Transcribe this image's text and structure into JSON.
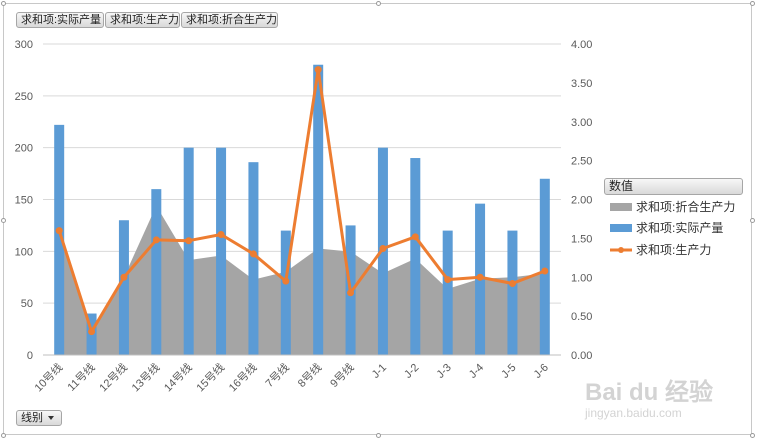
{
  "field_buttons": [
    "求和项:实际产量",
    "求和项:生产力",
    "求和项:折合生产力"
  ],
  "axis_field_button": "线别",
  "legend": {
    "title": "数值",
    "items": [
      {
        "label": "求和项:折合生产力",
        "color": "#a5a5a5",
        "kind": "area"
      },
      {
        "label": "求和项:实际产量",
        "color": "#5b9bd5",
        "kind": "bar"
      },
      {
        "label": "求和项:生产力",
        "color": "#ed7d31",
        "kind": "line"
      }
    ]
  },
  "watermark": {
    "main": "Bai du 经验",
    "sub": "jingyan.baidu.com"
  },
  "chart_data": {
    "type": "bar",
    "categories": [
      "10号线",
      "11号线",
      "12号线",
      "13号线",
      "14号线",
      "15号线",
      "16号线",
      "7号线",
      "8号线",
      "9号线",
      "J-1",
      "J-2",
      "J-3",
      "J-4",
      "J-5",
      "J-6"
    ],
    "series": [
      {
        "name": "求和项:实际产量",
        "type": "bar",
        "axis": "left",
        "color": "#5b9bd5",
        "values": [
          222,
          40,
          130,
          160,
          200,
          200,
          186,
          120,
          280,
          125,
          200,
          190,
          120,
          146,
          120,
          170
        ]
      },
      {
        "name": "求和项:生产力",
        "type": "line",
        "axis": "right",
        "color": "#ed7d31",
        "values": [
          1.6,
          0.3,
          1.0,
          1.48,
          1.47,
          1.55,
          1.3,
          0.95,
          3.67,
          0.8,
          1.37,
          1.52,
          0.97,
          1.0,
          0.92,
          1.08
        ]
      },
      {
        "name": "求和项:折合生产力",
        "type": "area",
        "axis": "right",
        "color": "#a5a5a5",
        "values": [
          1.55,
          0.3,
          1.0,
          1.92,
          1.22,
          1.28,
          0.97,
          1.07,
          1.37,
          1.33,
          1.05,
          1.24,
          0.85,
          0.98,
          1.0,
          1.05
        ]
      }
    ],
    "y_left": {
      "min": 0,
      "max": 300,
      "ticks": [
        "0",
        "50",
        "100",
        "150",
        "200",
        "250",
        "300"
      ]
    },
    "y_right": {
      "min": 0,
      "max": 4,
      "ticks": [
        "0.00",
        "0.50",
        "1.00",
        "1.50",
        "2.00",
        "2.50",
        "3.00",
        "3.50",
        "4.00"
      ]
    },
    "grid": true,
    "legend_position": "right"
  }
}
